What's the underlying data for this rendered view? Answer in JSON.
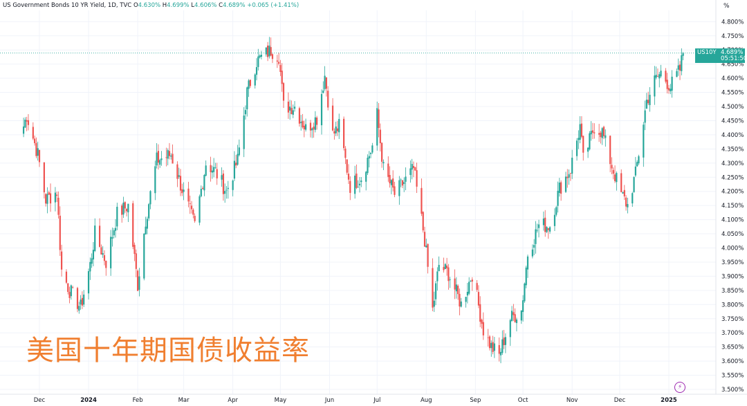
{
  "legend": {
    "symbol_desc": "US Government Bonds 10 YR Yield, 1D, TVC",
    "open_label": "O",
    "open": "4.630%",
    "high_label": "H",
    "high": "4.699%",
    "low_label": "L",
    "low": "4.606%",
    "close_label": "C",
    "close": "4.689%",
    "change": "+0.065 (+1.41%)"
  },
  "axis_unit": "%",
  "price_tag": {
    "symbol": "US10Y",
    "price": "4.689%",
    "countdown": "05:51:50"
  },
  "overlay_title": "美国十年期国债收益率",
  "colors": {
    "up": "#26a69a",
    "down": "#ef5350",
    "grid": "#f0f3fa",
    "text": "#131722",
    "overlay": "#f07f30"
  },
  "chart_data": {
    "type": "candlestick",
    "title": "US Government Bonds 10 YR Yield, 1D, TVC",
    "ylabel": "%",
    "ylim": [
      3.5,
      4.8
    ],
    "y_ticks": [
      "3.500%",
      "3.550%",
      "3.600%",
      "3.650%",
      "3.700%",
      "3.750%",
      "3.800%",
      "3.850%",
      "3.900%",
      "3.950%",
      "4.000%",
      "4.050%",
      "4.100%",
      "4.150%",
      "4.200%",
      "4.250%",
      "4.300%",
      "4.350%",
      "4.400%",
      "4.450%",
      "4.500%",
      "4.550%",
      "4.600%",
      "4.650%",
      "4.700%",
      "4.750%",
      "4.800%"
    ],
    "x_ticks": [
      "Dec",
      "2024",
      "Feb",
      "Mar",
      "Apr",
      "May",
      "Jun",
      "Jul",
      "Aug",
      "Sep",
      "Oct",
      "Nov",
      "Dec",
      "2025"
    ],
    "last_close": 4.689,
    "close_path": [
      [
        "2023-11-20",
        4.41
      ],
      [
        "2023-11-23",
        4.47
      ],
      [
        "2023-11-30",
        4.33
      ],
      [
        "2023-12-05",
        4.17
      ],
      [
        "2023-12-12",
        4.2
      ],
      [
        "2023-12-15",
        3.92
      ],
      [
        "2023-12-20",
        3.85
      ],
      [
        "2023-12-27",
        3.79
      ],
      [
        "2024-01-02",
        3.94
      ],
      [
        "2024-01-05",
        4.05
      ],
      [
        "2024-01-12",
        3.95
      ],
      [
        "2024-01-19",
        4.12
      ],
      [
        "2024-01-26",
        4.15
      ],
      [
        "2024-02-01",
        3.87
      ],
      [
        "2024-02-06",
        4.1
      ],
      [
        "2024-02-13",
        4.31
      ],
      [
        "2024-02-22",
        4.33
      ],
      [
        "2024-03-01",
        4.19
      ],
      [
        "2024-03-08",
        4.08
      ],
      [
        "2024-03-15",
        4.3
      ],
      [
        "2024-03-21",
        4.27
      ],
      [
        "2024-03-28",
        4.2
      ],
      [
        "2024-04-04",
        4.31
      ],
      [
        "2024-04-10",
        4.55
      ],
      [
        "2024-04-16",
        4.66
      ],
      [
        "2024-04-25",
        4.7
      ],
      [
        "2024-04-30",
        4.68
      ],
      [
        "2024-05-03",
        4.5
      ],
      [
        "2024-05-10",
        4.5
      ],
      [
        "2024-05-17",
        4.42
      ],
      [
        "2024-05-24",
        4.46
      ],
      [
        "2024-05-29",
        4.61
      ],
      [
        "2024-06-03",
        4.4
      ],
      [
        "2024-06-07",
        4.43
      ],
      [
        "2024-06-14",
        4.22
      ],
      [
        "2024-06-21",
        4.25
      ],
      [
        "2024-06-28",
        4.36
      ],
      [
        "2024-07-01",
        4.47
      ],
      [
        "2024-07-05",
        4.28
      ],
      [
        "2024-07-12",
        4.19
      ],
      [
        "2024-07-19",
        4.24
      ],
      [
        "2024-07-24",
        4.28
      ],
      [
        "2024-07-31",
        4.03
      ],
      [
        "2024-08-05",
        3.78
      ],
      [
        "2024-08-09",
        3.94
      ],
      [
        "2024-08-15",
        3.91
      ],
      [
        "2024-08-23",
        3.8
      ],
      [
        "2024-08-30",
        3.91
      ],
      [
        "2024-09-06",
        3.71
      ],
      [
        "2024-09-11",
        3.65
      ],
      [
        "2024-09-16",
        3.62
      ],
      [
        "2024-09-23",
        3.75
      ],
      [
        "2024-09-30",
        3.78
      ],
      [
        "2024-10-04",
        3.98
      ],
      [
        "2024-10-11",
        4.08
      ],
      [
        "2024-10-18",
        4.08
      ],
      [
        "2024-10-24",
        4.21
      ],
      [
        "2024-10-31",
        4.28
      ],
      [
        "2024-11-06",
        4.43
      ],
      [
        "2024-11-08",
        4.31
      ],
      [
        "2024-11-15",
        4.43
      ],
      [
        "2024-11-20",
        4.41
      ],
      [
        "2024-11-26",
        4.29
      ],
      [
        "2024-12-02",
        4.19
      ],
      [
        "2024-12-06",
        4.15
      ],
      [
        "2024-12-11",
        4.26
      ],
      [
        "2024-12-18",
        4.52
      ],
      [
        "2024-12-23",
        4.59
      ],
      [
        "2024-12-27",
        4.62
      ],
      [
        "2025-01-02",
        4.57
      ],
      [
        "2025-01-08",
        4.63
      ],
      [
        "2025-01-10",
        4.689
      ]
    ]
  }
}
